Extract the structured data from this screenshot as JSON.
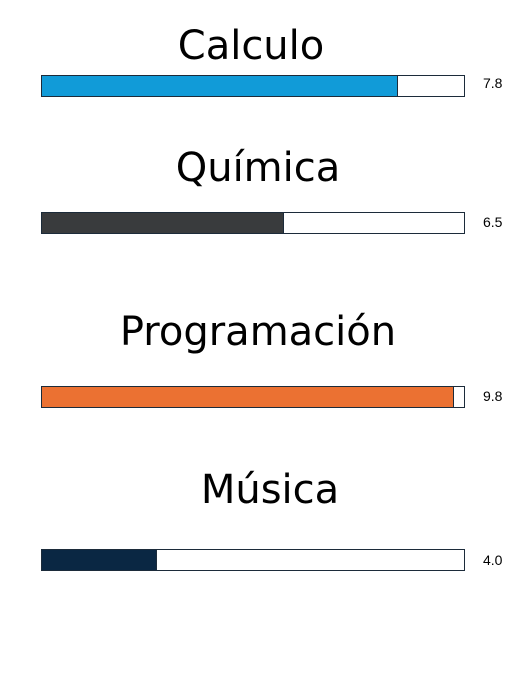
{
  "subjects": [
    {
      "name": "Calculo",
      "value_label": "7.8",
      "level": 0.843,
      "color": "#119bd8"
    },
    {
      "name": "Química",
      "value_label": "6.5",
      "level": 0.574,
      "color": "#393b3d"
    },
    {
      "name": "Programación",
      "value_label": "9.8",
      "level": 0.976,
      "color": "#eb7132"
    },
    {
      "name": "Música",
      "value_label": "4.0",
      "level": 0.272,
      "color": "#0a2743"
    }
  ]
}
